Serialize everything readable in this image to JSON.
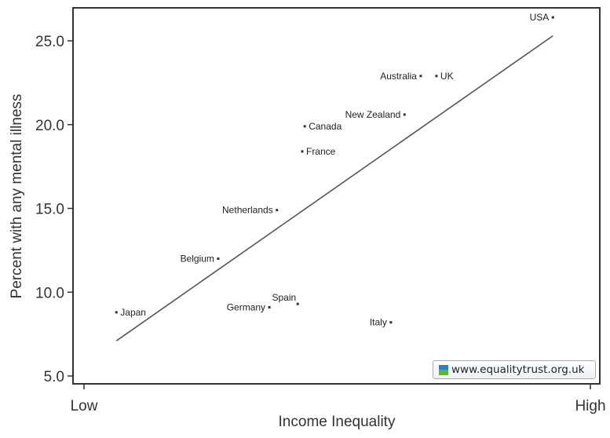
{
  "chart_data": {
    "type": "scatter",
    "title": "",
    "xlabel": "Income Inequality",
    "ylabel": "Percent with any mental illness",
    "x_tick_labels": [
      "Low",
      "High"
    ],
    "xlim": [
      0,
      1
    ],
    "ylim": [
      5,
      27
    ],
    "y_ticks": [
      5,
      10,
      15,
      20,
      25
    ],
    "y_tick_labels": [
      "5.0",
      "10.0",
      "15.0",
      "20.0",
      "25.0"
    ],
    "grid": false,
    "points": [
      {
        "label": "Japan",
        "x": 0.064,
        "y": 8.8
      },
      {
        "label": "Belgium",
        "x": 0.265,
        "y": 12.0
      },
      {
        "label": "Germany",
        "x": 0.366,
        "y": 9.1
      },
      {
        "label": "Spain",
        "x": 0.422,
        "y": 9.3
      },
      {
        "label": "Netherlands",
        "x": 0.381,
        "y": 14.9
      },
      {
        "label": "France",
        "x": 0.431,
        "y": 18.4
      },
      {
        "label": "Canada",
        "x": 0.436,
        "y": 19.9
      },
      {
        "label": "Italy",
        "x": 0.606,
        "y": 8.2
      },
      {
        "label": "New Zealand",
        "x": 0.633,
        "y": 20.6
      },
      {
        "label": "Australia",
        "x": 0.665,
        "y": 22.9
      },
      {
        "label": "UK",
        "x": 0.696,
        "y": 22.9
      },
      {
        "label": "USA",
        "x": 0.926,
        "y": 26.4
      }
    ],
    "fit_line": {
      "x": [
        0.064,
        0.926
      ],
      "y": [
        7.1,
        25.3
      ]
    },
    "colors": {
      "point": "#333333",
      "line": "#555555"
    }
  },
  "legend": {
    "text": "www.equalitytrust.org.uk",
    "icon_colors": [
      "#2a7fc9",
      "#5bb531"
    ]
  }
}
